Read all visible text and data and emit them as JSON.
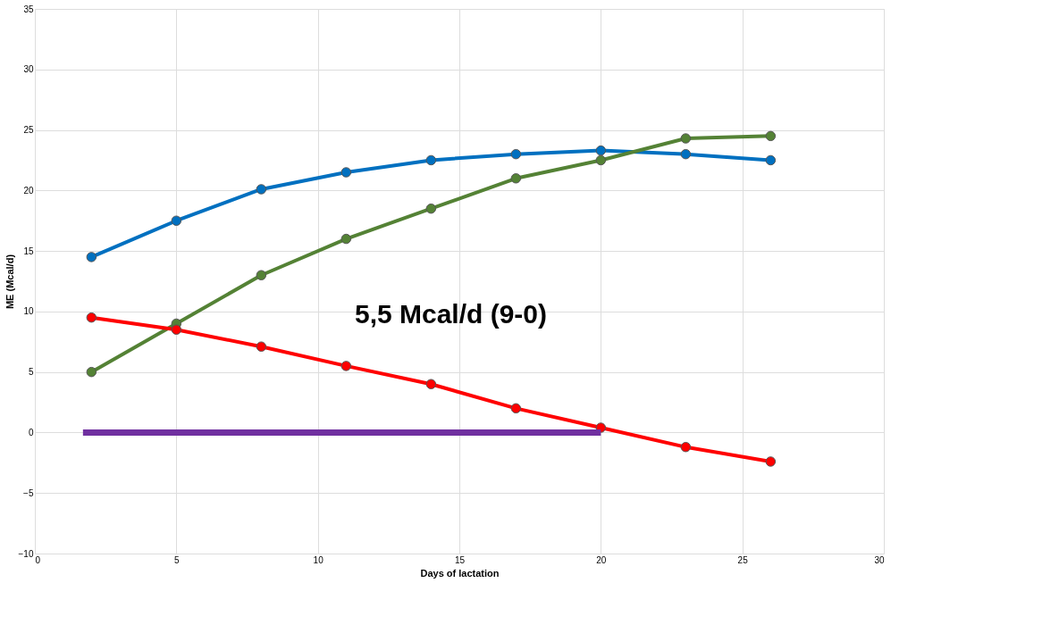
{
  "chart_data": {
    "type": "line",
    "xlabel": "Days of lactation",
    "ylabel": "ME (Mcal/d)",
    "annotations": [
      "5,5 Mcal/d (9-0)"
    ],
    "xlim": [
      0,
      30
    ],
    "xticks": [
      0,
      5,
      10,
      15,
      20,
      25,
      30
    ],
    "ylim": [
      -10,
      35
    ],
    "yticks": [
      -10,
      -5,
      0,
      5,
      10,
      15,
      20,
      25,
      30,
      35
    ],
    "grid": true,
    "marker": "circle",
    "line_style": "solid",
    "x": [
      2,
      5,
      8,
      11,
      14,
      17,
      20,
      23,
      26
    ],
    "series": [
      {
        "color": "#0070c0",
        "values": [
          14.5,
          17.5,
          20.1,
          21.5,
          22.5,
          23,
          23.3,
          23,
          22.5
        ]
      },
      {
        "color": "#548235",
        "values": [
          5,
          9,
          13,
          16,
          18.5,
          21,
          22.5,
          24.3,
          24.5
        ]
      },
      {
        "color": "#ff0000",
        "values": [
          9.5,
          8.5,
          7.1,
          5.5,
          4,
          2,
          0.4,
          -1.2,
          -2.4
        ]
      },
      {
        "color": "#7030a0",
        "x": [
          1.7,
          20
        ],
        "values": [
          0,
          0
        ],
        "marker": "none"
      }
    ]
  }
}
